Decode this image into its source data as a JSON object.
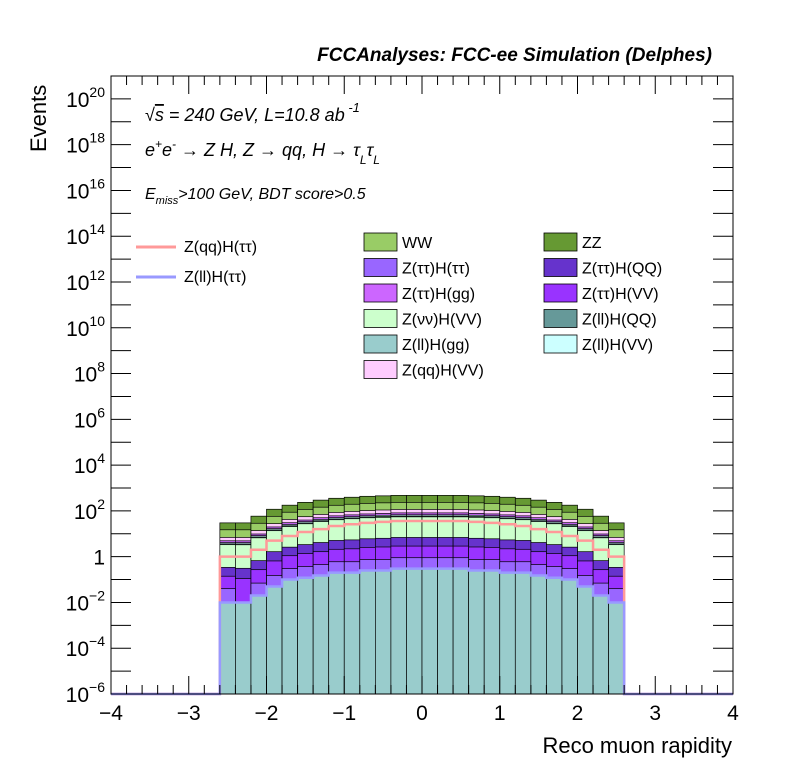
{
  "chart_data": {
    "type": "area",
    "title": "FCCAnalyses: FCC-ee Simulation (Delphes)",
    "xlabel": "Reco muon rapidity",
    "ylabel": "Events",
    "xlim": [
      -4,
      4
    ],
    "ylim": [
      1e-06,
      1e+21
    ],
    "yscale": "log",
    "annotations": {
      "line1": "√s = 240 GeV, L=10.8 ab⁻¹",
      "line2": "e⁺e⁻ → Z H, Z → qq, H → τ_L τ_L",
      "line3": "E_miss>100 GeV, BDT score>0.5"
    },
    "x_tick_labels": [
      "−4",
      "−3",
      "−2",
      "−1",
      "0",
      "1",
      "2",
      "3",
      "4"
    ],
    "y_tick_labels": [
      {
        "base": "10",
        "exp": "−6"
      },
      {
        "base": "10",
        "exp": "−4"
      },
      {
        "base": "10",
        "exp": "−2"
      },
      {
        "base": "1",
        "exp": ""
      },
      {
        "base": "10",
        "exp": "2"
      },
      {
        "base": "10",
        "exp": "4"
      },
      {
        "base": "10",
        "exp": "6"
      },
      {
        "base": "10",
        "exp": "8"
      },
      {
        "base": "10",
        "exp": "10"
      },
      {
        "base": "10",
        "exp": "12"
      },
      {
        "base": "10",
        "exp": "14"
      },
      {
        "base": "10",
        "exp": "16"
      },
      {
        "base": "10",
        "exp": "18"
      },
      {
        "base": "10",
        "exp": "20"
      }
    ],
    "bin_edges": [
      -2.6,
      -2.4,
      -2.2,
      -2.0,
      -1.8,
      -1.6,
      -1.4,
      -1.2,
      -1.0,
      -0.8,
      -0.6,
      -0.4,
      -0.2,
      0.0,
      0.2,
      0.4,
      0.6,
      0.8,
      1.0,
      1.2,
      1.4,
      1.6,
      1.8,
      2.0,
      2.2,
      2.4,
      2.6
    ],
    "stack_bottom_to_top": [
      {
        "name": "Z(ll)H(gg)",
        "color": "#99cccc",
        "values": [
          0.01,
          0.01,
          0.02,
          0.05,
          0.1,
          0.12,
          0.15,
          0.2,
          0.2,
          0.25,
          0.25,
          0.3,
          0.3,
          0.3,
          0.3,
          0.3,
          0.25,
          0.25,
          0.2,
          0.2,
          0.15,
          0.12,
          0.1,
          0.05,
          0.02,
          0.01
        ]
      },
      {
        "name": "Z(ττ)H(ττ)",
        "color": "#9966ff",
        "values": [
          0.03,
          1e-06,
          0.05,
          0.1,
          0.2,
          0.25,
          0.3,
          0.4,
          0.4,
          0.5,
          0.5,
          0.6,
          0.6,
          0.6,
          0.6,
          0.6,
          0.5,
          0.5,
          0.4,
          0.4,
          0.3,
          0.25,
          0.2,
          0.1,
          0.05,
          0.03
        ]
      },
      {
        "name": "Z(ττ)H(VV)",
        "color": "#9933ff",
        "values": [
          0.1,
          0.1,
          0.2,
          0.5,
          0.8,
          1,
          1.2,
          1.5,
          1.6,
          1.8,
          1.9,
          2,
          2,
          2,
          2,
          2,
          1.9,
          1.8,
          1.6,
          1.5,
          1.2,
          1,
          0.8,
          0.5,
          0.2,
          0.1
        ]
      },
      {
        "name": "Z(ττ)H(QQ)",
        "color": "#6633cc",
        "values": [
          0.2,
          0.2,
          0.4,
          1,
          1.5,
          2,
          2.5,
          3,
          3.2,
          3.5,
          3.7,
          4,
          4,
          4,
          4,
          4,
          3.7,
          3.5,
          3.2,
          3,
          2.5,
          2,
          1.5,
          1,
          0.4,
          0.2
        ]
      },
      {
        "name": "Z(νν)H(VV)",
        "color": "#ccffcc",
        "values": [
          3,
          3,
          6,
          12,
          18,
          24,
          30,
          36,
          40,
          44,
          46,
          48,
          48,
          48,
          48,
          48,
          46,
          44,
          40,
          36,
          30,
          24,
          18,
          12,
          6,
          3
        ]
      },
      {
        "name": "Z(ll)H(QQ)",
        "color": "#669999",
        "values": [
          0.3,
          0.3,
          0.6,
          1.2,
          1.8,
          2.4,
          3,
          3.6,
          4,
          4.4,
          4.6,
          4.8,
          4.8,
          4.8,
          4.8,
          4.8,
          4.6,
          4.4,
          4,
          3.6,
          3,
          2.4,
          1.8,
          1.2,
          0.6,
          0.3
        ]
      },
      {
        "name": "Z(ll)H(VV)",
        "color": "#ccffff",
        "values": [
          0.5,
          0.5,
          1,
          2,
          3,
          4,
          5,
          6,
          6.5,
          7,
          7.5,
          8,
          8,
          8,
          8,
          8,
          7.5,
          7,
          6.5,
          6,
          5,
          4,
          3,
          2,
          1,
          0.5
        ]
      },
      {
        "name": "Z(ττ)H(gg)",
        "color": "#cc66ff",
        "values": [
          0.8,
          0.8,
          1.5,
          3,
          5,
          6,
          8,
          10,
          11,
          12,
          13,
          14,
          14,
          14,
          14,
          14,
          13,
          12,
          11,
          10,
          8,
          6,
          5,
          3,
          1.5,
          0.8
        ]
      },
      {
        "name": "Z(qq)H(VV)",
        "color": "#ffccff",
        "values": [
          2,
          2,
          4,
          8,
          12,
          16,
          20,
          25,
          28,
          30,
          32,
          34,
          34,
          34,
          34,
          34,
          32,
          30,
          28,
          25,
          20,
          16,
          12,
          8,
          4,
          2
        ]
      },
      {
        "name": "WW",
        "color": "#99cc66",
        "values": [
          8,
          8,
          15,
          30,
          45,
          60,
          75,
          90,
          100,
          110,
          115,
          120,
          120,
          120,
          120,
          120,
          115,
          110,
          100,
          90,
          75,
          60,
          45,
          30,
          15,
          8
        ]
      },
      {
        "name": "ZZ",
        "color": "#669933",
        "values": [
          15,
          15,
          30,
          60,
          90,
          120,
          150,
          180,
          200,
          220,
          230,
          240,
          240,
          240,
          240,
          240,
          230,
          220,
          200,
          180,
          150,
          120,
          90,
          60,
          30,
          15
        ]
      }
    ],
    "lines": [
      {
        "name": "Z(qq)H(ττ)",
        "color": "#ff9999",
        "values": [
          1,
          1,
          2,
          5,
          8,
          12,
          16,
          22,
          26,
          30,
          33,
          36,
          36,
          36,
          36,
          36,
          33,
          30,
          26,
          22,
          16,
          12,
          8,
          5,
          2,
          1
        ]
      },
      {
        "name": "Z(ll)H(ττ)",
        "color": "#9999ff",
        "values": [
          0.01,
          0.01,
          0.02,
          0.05,
          0.1,
          0.12,
          0.15,
          0.2,
          0.2,
          0.25,
          0.25,
          0.3,
          0.3,
          0.3,
          0.3,
          0.3,
          0.25,
          0.25,
          0.2,
          0.2,
          0.15,
          0.12,
          0.1,
          0.05,
          0.02,
          0.01
        ]
      }
    ],
    "legend": {
      "lines": [
        "Z(qq)H(ττ)",
        "Z(ll)H(ττ)"
      ],
      "col1": [
        "WW",
        "Z(ττ)H(ττ)",
        "Z(ττ)H(gg)",
        "Z(νν)H(VV)",
        "Z(ll)H(gg)",
        "Z(qq)H(VV)"
      ],
      "col2": [
        "ZZ",
        "Z(ττ)H(QQ)",
        "Z(ττ)H(VV)",
        "Z(ll)H(QQ)",
        "Z(ll)H(VV)"
      ]
    }
  }
}
